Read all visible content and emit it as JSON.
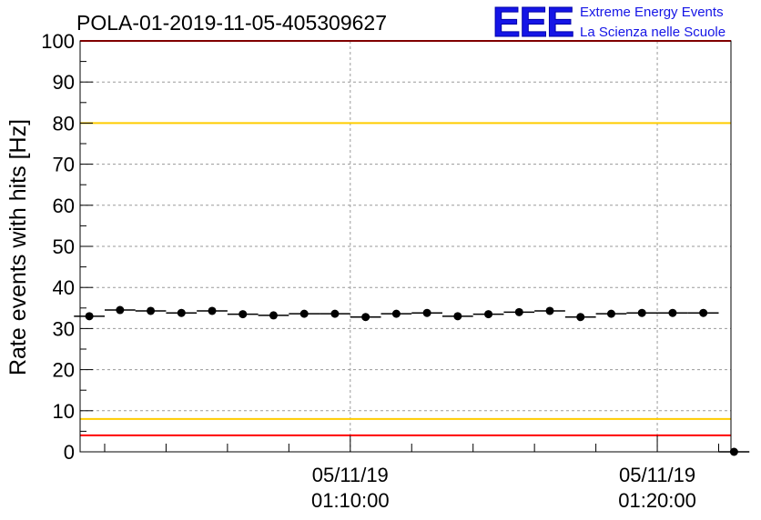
{
  "chart_data": {
    "type": "scatter",
    "title": "POLA-01-2019-11-05-405309627",
    "ylabel": "Rate events with hits [Hz]",
    "xlabel": "",
    "ylim": [
      0,
      100
    ],
    "yticks": [
      0,
      10,
      20,
      30,
      40,
      50,
      60,
      70,
      80,
      90,
      100
    ],
    "xrange_minutes": [
      1.2,
      22.4
    ],
    "x_time_labels": [
      {
        "minute": 10,
        "date": "05/11/19",
        "time": "01:10:00"
      },
      {
        "minute": 20,
        "date": "05/11/19",
        "time": "01:20:00"
      }
    ],
    "grid": true,
    "reference_lines": [
      {
        "value": 100,
        "color": "#ff0000"
      },
      {
        "value": 80,
        "color": "#ffcc00"
      },
      {
        "value": 8,
        "color": "#ffcc00"
      },
      {
        "value": 4,
        "color": "#ff0000"
      }
    ],
    "series": [
      {
        "points": [
          {
            "x": 1.5,
            "y": 33.0
          },
          {
            "x": 2.5,
            "y": 34.5
          },
          {
            "x": 3.5,
            "y": 34.3
          },
          {
            "x": 4.5,
            "y": 33.8
          },
          {
            "x": 5.5,
            "y": 34.3
          },
          {
            "x": 6.5,
            "y": 33.5
          },
          {
            "x": 7.5,
            "y": 33.2
          },
          {
            "x": 8.5,
            "y": 33.6
          },
          {
            "x": 9.5,
            "y": 33.6
          },
          {
            "x": 10.5,
            "y": 32.8
          },
          {
            "x": 11.5,
            "y": 33.6
          },
          {
            "x": 12.5,
            "y": 33.8
          },
          {
            "x": 13.5,
            "y": 33.0
          },
          {
            "x": 14.5,
            "y": 33.5
          },
          {
            "x": 15.5,
            "y": 34.0
          },
          {
            "x": 16.5,
            "y": 34.3
          },
          {
            "x": 17.5,
            "y": 32.8
          },
          {
            "x": 18.5,
            "y": 33.6
          },
          {
            "x": 19.5,
            "y": 33.8
          },
          {
            "x": 20.5,
            "y": 33.8
          },
          {
            "x": 21.5,
            "y": 33.8
          },
          {
            "x": 22.5,
            "y": 0
          }
        ],
        "color": "#000000"
      }
    ]
  },
  "logo": {
    "mark": "EEE",
    "line1": "Extreme Energy Events",
    "line2": "La Scienza nelle Scuole"
  }
}
